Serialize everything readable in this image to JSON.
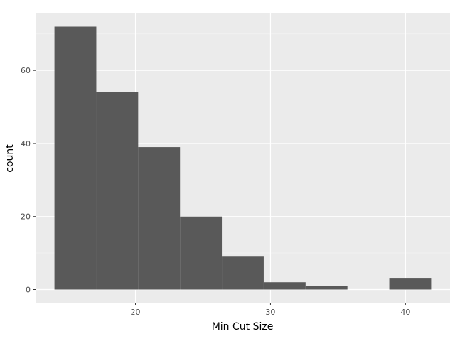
{
  "chart_data": {
    "type": "bar",
    "subtype": "histogram",
    "title": "",
    "xlabel": "Min Cut Size",
    "ylabel": "count",
    "bins": [
      {
        "start": 14.0,
        "end": 17.1,
        "count": 72
      },
      {
        "start": 17.1,
        "end": 20.2,
        "count": 54
      },
      {
        "start": 20.2,
        "end": 23.3,
        "count": 39
      },
      {
        "start": 23.3,
        "end": 26.4,
        "count": 20
      },
      {
        "start": 26.4,
        "end": 29.5,
        "count": 9
      },
      {
        "start": 29.5,
        "end": 32.6,
        "count": 2
      },
      {
        "start": 32.6,
        "end": 35.7,
        "count": 1
      },
      {
        "start": 35.7,
        "end": 38.8,
        "count": 0
      },
      {
        "start": 38.8,
        "end": 41.9,
        "count": 3
      }
    ],
    "xlim": [
      12.6,
      43.3
    ],
    "ylim": [
      -3.6,
      75.6
    ],
    "x_major_ticks": [
      20,
      30,
      40
    ],
    "x_minor_ticks": [
      15,
      25,
      35
    ],
    "y_major_ticks": [
      0,
      20,
      40,
      60
    ],
    "y_minor_ticks": [
      10,
      30,
      50,
      70
    ],
    "x_tick_labels": [
      "20",
      "30",
      "40"
    ],
    "y_tick_labels": [
      "0",
      "20",
      "40",
      "60"
    ],
    "grid": true,
    "legend": "none",
    "colors": {
      "bar_fill": "#595959",
      "panel_background": "#ebebeb",
      "grid_major": "#ffffff",
      "grid_minor": "#f5f5f5",
      "tick_text": "#4d4d4d",
      "tick_mark": "#333333"
    }
  }
}
